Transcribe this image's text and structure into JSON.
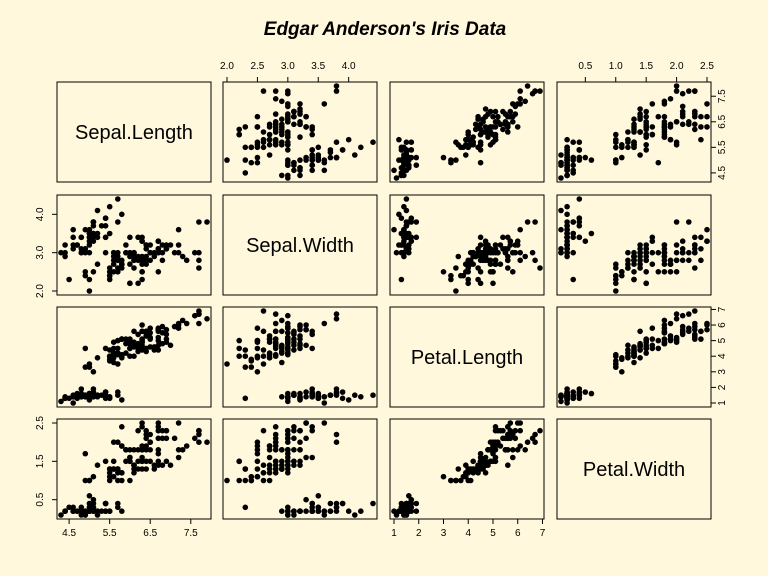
{
  "chart_data": {
    "type": "scatter",
    "title": "Edgar Anderson's Iris Data",
    "variables": [
      "Sepal.Length",
      "Sepal.Width",
      "Petal.Length",
      "Petal.Width"
    ],
    "axes": {
      "Sepal.Length": {
        "ticks": [
          "4.5",
          "5.5",
          "6.5",
          "7.5"
        ],
        "tick_side": [
          "bottom",
          "right"
        ],
        "range": [
          4.3,
          7.9
        ]
      },
      "Sepal.Width": {
        "ticks": [
          "2.0",
          "2.5",
          "3.0",
          "3.5",
          "4.0"
        ],
        "bottom_ticks": [
          "2.0",
          "3.0",
          "4.0"
        ],
        "tick_side": [
          "top",
          "left"
        ],
        "range": [
          2.0,
          4.4
        ]
      },
      "Petal.Length": {
        "ticks": [
          "1",
          "2",
          "3",
          "4",
          "5",
          "6",
          "7"
        ],
        "tick_side": [
          "bottom",
          "right"
        ],
        "range": [
          1.0,
          6.9
        ]
      },
      "Petal.Width": {
        "ticks": [
          "0.5",
          "1.0",
          "1.5",
          "2.0",
          "2.5"
        ],
        "left_ticks": [
          "0.5",
          "1.5",
          "2.5"
        ],
        "tick_side": [
          "top",
          "left"
        ],
        "range": [
          0.1,
          2.5
        ]
      }
    },
    "grid": false,
    "point_style": "filled-circle",
    "records": [
      [
        5.1,
        3.5,
        1.4,
        0.2
      ],
      [
        4.9,
        3.0,
        1.4,
        0.2
      ],
      [
        4.7,
        3.2,
        1.3,
        0.2
      ],
      [
        4.6,
        3.1,
        1.5,
        0.2
      ],
      [
        5.0,
        3.6,
        1.4,
        0.2
      ],
      [
        5.4,
        3.9,
        1.7,
        0.4
      ],
      [
        4.6,
        3.4,
        1.4,
        0.3
      ],
      [
        5.0,
        3.4,
        1.5,
        0.2
      ],
      [
        4.4,
        2.9,
        1.4,
        0.2
      ],
      [
        4.9,
        3.1,
        1.5,
        0.1
      ],
      [
        5.4,
        3.7,
        1.5,
        0.2
      ],
      [
        4.8,
        3.4,
        1.6,
        0.2
      ],
      [
        4.8,
        3.0,
        1.4,
        0.1
      ],
      [
        4.3,
        3.0,
        1.1,
        0.1
      ],
      [
        5.8,
        4.0,
        1.2,
        0.2
      ],
      [
        5.7,
        4.4,
        1.5,
        0.4
      ],
      [
        5.4,
        3.9,
        1.3,
        0.4
      ],
      [
        5.1,
        3.5,
        1.4,
        0.3
      ],
      [
        5.7,
        3.8,
        1.7,
        0.3
      ],
      [
        5.1,
        3.8,
        1.5,
        0.3
      ],
      [
        5.4,
        3.4,
        1.7,
        0.2
      ],
      [
        5.1,
        3.7,
        1.5,
        0.4
      ],
      [
        4.6,
        3.6,
        1.0,
        0.2
      ],
      [
        5.1,
        3.3,
        1.7,
        0.5
      ],
      [
        4.8,
        3.4,
        1.9,
        0.2
      ],
      [
        5.0,
        3.0,
        1.6,
        0.2
      ],
      [
        5.0,
        3.4,
        1.6,
        0.4
      ],
      [
        5.2,
        3.5,
        1.5,
        0.2
      ],
      [
        5.2,
        3.4,
        1.4,
        0.2
      ],
      [
        4.7,
        3.2,
        1.6,
        0.2
      ],
      [
        4.8,
        3.1,
        1.6,
        0.2
      ],
      [
        5.4,
        3.4,
        1.5,
        0.4
      ],
      [
        5.2,
        4.1,
        1.5,
        0.1
      ],
      [
        5.5,
        4.2,
        1.4,
        0.2
      ],
      [
        4.9,
        3.1,
        1.5,
        0.2
      ],
      [
        5.0,
        3.2,
        1.2,
        0.2
      ],
      [
        5.5,
        3.5,
        1.3,
        0.2
      ],
      [
        4.9,
        3.6,
        1.4,
        0.1
      ],
      [
        4.4,
        3.0,
        1.3,
        0.2
      ],
      [
        5.1,
        3.4,
        1.5,
        0.2
      ],
      [
        5.0,
        3.5,
        1.3,
        0.3
      ],
      [
        4.5,
        2.3,
        1.3,
        0.3
      ],
      [
        4.4,
        3.2,
        1.3,
        0.2
      ],
      [
        5.0,
        3.5,
        1.6,
        0.6
      ],
      [
        5.1,
        3.8,
        1.9,
        0.4
      ],
      [
        4.8,
        3.0,
        1.4,
        0.3
      ],
      [
        5.1,
        3.8,
        1.6,
        0.2
      ],
      [
        4.6,
        3.2,
        1.4,
        0.2
      ],
      [
        5.3,
        3.7,
        1.5,
        0.2
      ],
      [
        5.0,
        3.3,
        1.4,
        0.2
      ],
      [
        7.0,
        3.2,
        4.7,
        1.4
      ],
      [
        6.4,
        3.2,
        4.5,
        1.5
      ],
      [
        6.9,
        3.1,
        4.9,
        1.5
      ],
      [
        5.5,
        2.3,
        4.0,
        1.3
      ],
      [
        6.5,
        2.8,
        4.6,
        1.5
      ],
      [
        5.7,
        2.8,
        4.5,
        1.3
      ],
      [
        6.3,
        3.3,
        4.7,
        1.6
      ],
      [
        4.9,
        2.4,
        3.3,
        1.0
      ],
      [
        6.6,
        2.9,
        4.6,
        1.3
      ],
      [
        5.2,
        2.7,
        3.9,
        1.4
      ],
      [
        5.0,
        2.0,
        3.5,
        1.0
      ],
      [
        5.9,
        3.0,
        4.2,
        1.5
      ],
      [
        6.0,
        2.2,
        4.0,
        1.0
      ],
      [
        6.1,
        2.9,
        4.7,
        1.4
      ],
      [
        5.6,
        2.9,
        3.6,
        1.3
      ],
      [
        6.7,
        3.1,
        4.4,
        1.4
      ],
      [
        5.6,
        3.0,
        4.5,
        1.5
      ],
      [
        5.8,
        2.7,
        4.1,
        1.0
      ],
      [
        6.2,
        2.2,
        4.5,
        1.5
      ],
      [
        5.6,
        2.5,
        3.9,
        1.1
      ],
      [
        5.9,
        3.2,
        4.8,
        1.8
      ],
      [
        6.1,
        2.8,
        4.0,
        1.3
      ],
      [
        6.3,
        2.5,
        4.9,
        1.5
      ],
      [
        6.1,
        2.8,
        4.7,
        1.2
      ],
      [
        6.4,
        2.9,
        4.3,
        1.3
      ],
      [
        6.6,
        3.0,
        4.4,
        1.4
      ],
      [
        6.8,
        2.8,
        4.8,
        1.4
      ],
      [
        6.7,
        3.0,
        5.0,
        1.7
      ],
      [
        6.0,
        2.9,
        4.5,
        1.5
      ],
      [
        5.7,
        2.6,
        3.5,
        1.0
      ],
      [
        5.5,
        2.4,
        3.8,
        1.1
      ],
      [
        5.5,
        2.4,
        3.7,
        1.0
      ],
      [
        5.8,
        2.7,
        3.9,
        1.2
      ],
      [
        6.0,
        2.7,
        5.1,
        1.6
      ],
      [
        5.4,
        3.0,
        4.5,
        1.5
      ],
      [
        6.0,
        3.4,
        4.5,
        1.6
      ],
      [
        6.7,
        3.1,
        4.7,
        1.5
      ],
      [
        6.3,
        2.3,
        4.4,
        1.3
      ],
      [
        5.6,
        3.0,
        4.1,
        1.3
      ],
      [
        5.5,
        2.5,
        4.0,
        1.3
      ],
      [
        5.5,
        2.6,
        4.4,
        1.2
      ],
      [
        6.1,
        3.0,
        4.6,
        1.4
      ],
      [
        5.8,
        2.6,
        4.0,
        1.2
      ],
      [
        5.0,
        2.3,
        3.3,
        1.0
      ],
      [
        5.6,
        2.7,
        4.2,
        1.3
      ],
      [
        5.7,
        3.0,
        4.2,
        1.2
      ],
      [
        5.7,
        2.9,
        4.2,
        1.3
      ],
      [
        6.2,
        2.9,
        4.3,
        1.3
      ],
      [
        5.1,
        2.5,
        3.0,
        1.1
      ],
      [
        5.7,
        2.8,
        4.1,
        1.3
      ],
      [
        6.3,
        3.3,
        6.0,
        2.5
      ],
      [
        5.8,
        2.7,
        5.1,
        1.9
      ],
      [
        7.1,
        3.0,
        5.9,
        2.1
      ],
      [
        6.3,
        2.9,
        5.6,
        1.8
      ],
      [
        6.5,
        3.0,
        5.8,
        2.2
      ],
      [
        7.6,
        3.0,
        6.6,
        2.1
      ],
      [
        4.9,
        2.5,
        4.5,
        1.7
      ],
      [
        7.3,
        2.9,
        6.3,
        1.8
      ],
      [
        6.7,
        2.5,
        5.8,
        1.8
      ],
      [
        7.2,
        3.6,
        6.1,
        2.5
      ],
      [
        6.5,
        3.2,
        5.1,
        2.0
      ],
      [
        6.4,
        2.7,
        5.3,
        1.9
      ],
      [
        6.8,
        3.0,
        5.5,
        2.1
      ],
      [
        5.7,
        2.5,
        5.0,
        2.0
      ],
      [
        5.8,
        2.8,
        5.1,
        2.4
      ],
      [
        6.4,
        3.2,
        5.3,
        2.3
      ],
      [
        6.5,
        3.0,
        5.5,
        1.8
      ],
      [
        7.7,
        3.8,
        6.7,
        2.2
      ],
      [
        7.7,
        2.6,
        6.9,
        2.3
      ],
      [
        6.0,
        2.2,
        5.0,
        1.5
      ],
      [
        6.9,
        3.2,
        5.7,
        2.3
      ],
      [
        5.6,
        2.8,
        4.9,
        2.0
      ],
      [
        7.7,
        2.8,
        6.7,
        2.0
      ],
      [
        6.3,
        2.7,
        4.9,
        1.8
      ],
      [
        6.7,
        3.3,
        5.7,
        2.1
      ],
      [
        7.2,
        3.2,
        6.0,
        1.8
      ],
      [
        6.2,
        2.8,
        4.8,
        1.8
      ],
      [
        6.1,
        3.0,
        4.9,
        1.8
      ],
      [
        6.4,
        2.8,
        5.6,
        2.1
      ],
      [
        7.2,
        3.0,
        5.8,
        1.6
      ],
      [
        7.4,
        2.8,
        6.1,
        1.9
      ],
      [
        7.9,
        3.8,
        6.4,
        2.0
      ],
      [
        6.4,
        2.8,
        5.6,
        2.2
      ],
      [
        6.3,
        2.8,
        5.1,
        1.5
      ],
      [
        6.1,
        2.6,
        5.6,
        1.4
      ],
      [
        7.7,
        3.0,
        6.1,
        2.3
      ],
      [
        6.3,
        3.4,
        5.6,
        2.4
      ],
      [
        6.4,
        3.1,
        5.5,
        1.8
      ],
      [
        6.0,
        3.0,
        4.8,
        1.8
      ],
      [
        6.9,
        3.1,
        5.4,
        2.1
      ],
      [
        6.7,
        3.1,
        5.6,
        2.4
      ],
      [
        6.9,
        3.1,
        5.1,
        2.3
      ],
      [
        5.8,
        2.7,
        5.1,
        1.9
      ],
      [
        6.8,
        3.2,
        5.9,
        2.3
      ],
      [
        6.7,
        3.3,
        5.7,
        2.5
      ],
      [
        6.7,
        3.0,
        5.2,
        2.3
      ],
      [
        6.3,
        2.5,
        5.0,
        1.9
      ],
      [
        6.5,
        3.0,
        5.2,
        2.0
      ],
      [
        6.2,
        3.4,
        5.4,
        2.3
      ],
      [
        5.9,
        3.0,
        5.1,
        1.8
      ]
    ]
  }
}
